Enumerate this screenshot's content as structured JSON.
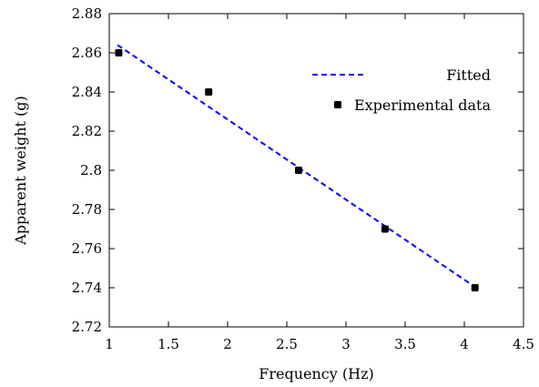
{
  "chart_data": {
    "type": "scatter",
    "xlabel": "Frequency (Hz)",
    "ylabel": "Apparent weight (g)",
    "xlim": [
      1,
      4.5
    ],
    "ylim": [
      2.72,
      2.88
    ],
    "xticks": [
      "1",
      "1.5",
      "2",
      "2.5",
      "3",
      "3.5",
      "4",
      "4.5"
    ],
    "yticks": [
      "2.72",
      "2.74",
      "2.76",
      "2.78",
      "2.8",
      "2.82",
      "2.84",
      "2.86",
      "2.88"
    ],
    "grid": false,
    "legend_position": "top-right",
    "series": [
      {
        "name": "Fitted",
        "kind": "line",
        "style": "dashed",
        "color": "#0000ff",
        "x": [
          1.07,
          4.1
        ],
        "y": [
          2.864,
          2.74
        ]
      },
      {
        "name": "Experimental data",
        "kind": "scatter",
        "marker": "square",
        "color": "#000000",
        "x": [
          1.08,
          1.84,
          2.6,
          3.33,
          4.09
        ],
        "y": [
          2.86,
          2.84,
          2.8,
          2.77,
          2.74
        ]
      }
    ]
  }
}
